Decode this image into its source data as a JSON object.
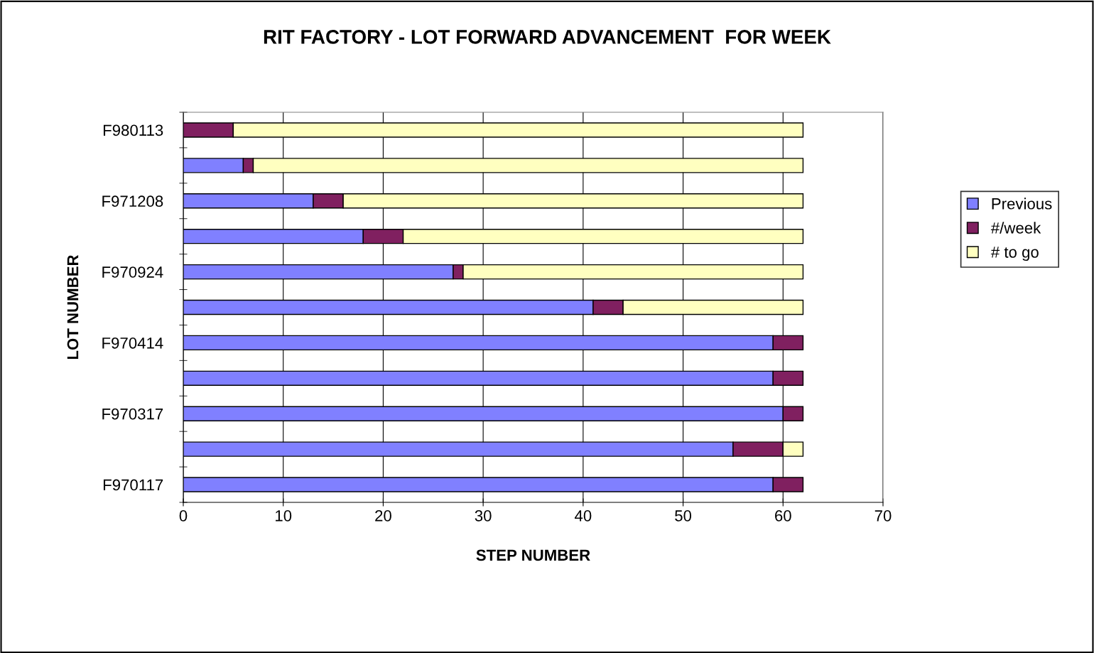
{
  "chart_data": {
    "type": "bar",
    "orientation": "horizontal",
    "stacked": true,
    "title": "RIT FACTORY - LOT FORWARD ADVANCEMENT  FOR WEEK",
    "xlabel": "STEP NUMBER",
    "ylabel": "LOT NUMBER",
    "categories": [
      "F980113",
      null,
      "F971208",
      null,
      "F970924",
      null,
      "F970414",
      null,
      "F970317",
      null,
      "F970117"
    ],
    "series": [
      {
        "name": "Previous",
        "color": "#8080ff",
        "values": [
          0,
          6,
          13,
          18,
          27,
          41,
          59,
          59,
          60,
          55,
          59
        ]
      },
      {
        "name": "#/week",
        "color": "#802060",
        "values": [
          5,
          1,
          3,
          4,
          1,
          3,
          3,
          3,
          2,
          5,
          3
        ]
      },
      {
        "name": "# to go",
        "color": "#ffffc0",
        "values": [
          57,
          55,
          46,
          40,
          34,
          18,
          null,
          null,
          null,
          2,
          null
        ]
      }
    ],
    "xlim": [
      0,
      70
    ],
    "xticks": [
      0,
      10,
      20,
      30,
      40,
      50,
      60,
      70
    ],
    "grid": "x",
    "legend": "right"
  }
}
